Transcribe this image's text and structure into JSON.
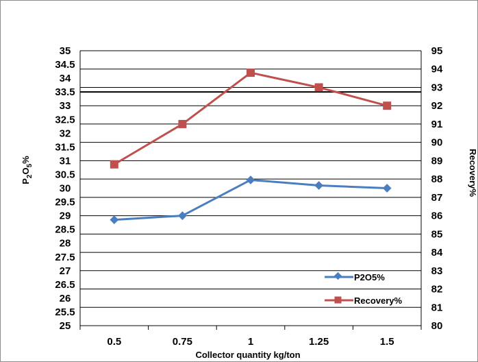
{
  "chart_data": {
    "type": "line",
    "categories": [
      "0.5",
      "0.75",
      "1",
      "1.25",
      "1.5"
    ],
    "series": [
      {
        "name": "P2O5%",
        "axis": "left",
        "color": "#4a7ebf",
        "marker": "diamond",
        "values": [
          28.85,
          29.0,
          30.3,
          30.1,
          30.0
        ]
      },
      {
        "name": "Recovery%",
        "axis": "right",
        "color": "#c0504d",
        "marker": "square",
        "values": [
          88.8,
          91.0,
          93.8,
          93.0,
          92.0
        ]
      }
    ],
    "xlabel": "Collector  quantity kg/ton",
    "ylabel_left": {
      "main": "P",
      "sub1": "2",
      "mid": "O",
      "sub2": "5",
      "end": "%"
    },
    "ylabel_right": "Recovery%",
    "ylim_left": [
      25,
      35
    ],
    "ylim_right": [
      80,
      95
    ],
    "yticks_left": [
      "25",
      "25.5",
      "26",
      "26.5",
      "27",
      "27.5",
      "28",
      "28.5",
      "29",
      "29.5",
      "30",
      "30.5",
      "31",
      "31.5",
      "32",
      "32.5",
      "33",
      "33.5",
      "34",
      "34.5",
      "35"
    ],
    "yticks_right": [
      "80",
      "81",
      "82",
      "83",
      "84",
      "85",
      "86",
      "87",
      "88",
      "89",
      "90",
      "91",
      "92",
      "93",
      "94",
      "95"
    ],
    "grid": true,
    "legend_position": "bottom-right"
  }
}
